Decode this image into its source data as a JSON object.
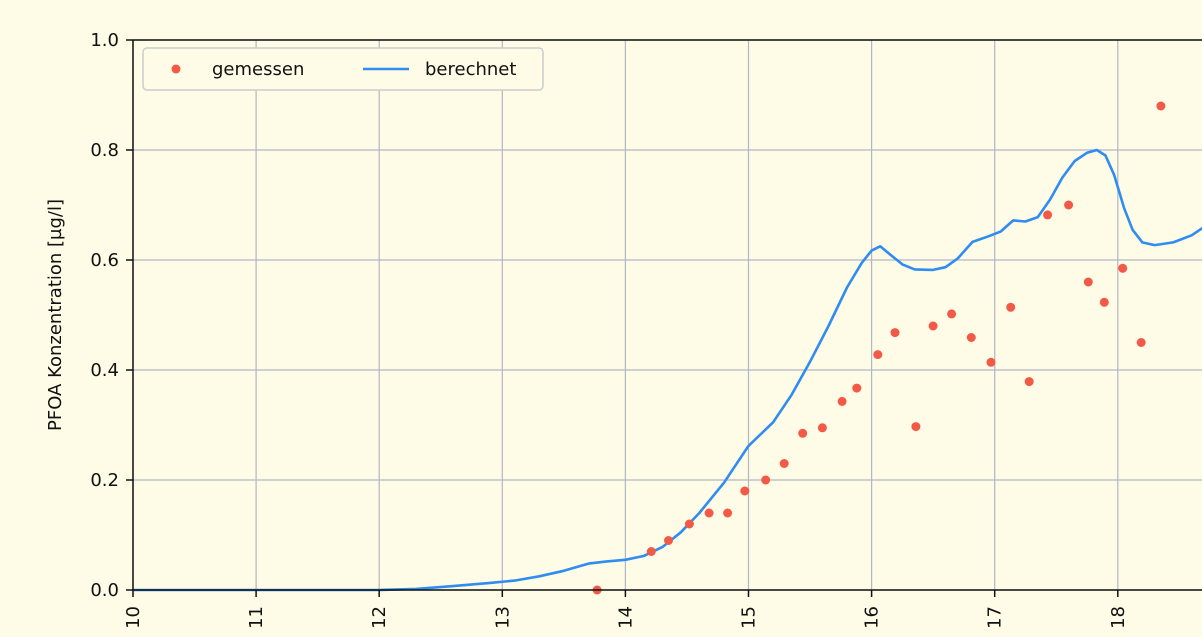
{
  "chart_data": {
    "type": "line",
    "ylabel": "PFOA Konzentration [µg/l]",
    "ylim": [
      0,
      1.0
    ],
    "xlim": [
      2010,
      2018.7
    ],
    "y_ticks": [
      "0.0",
      "0.2",
      "0.4",
      "0.6",
      "0.8",
      "1.0"
    ],
    "x_ticks": [
      "2010",
      "2011",
      "2012",
      "2013",
      "2014",
      "2015",
      "2016",
      "2017",
      "2018"
    ],
    "x_tick_labels_visible": [
      "10",
      "11",
      "12",
      "13",
      "14",
      "15",
      "16",
      "17",
      "18"
    ],
    "grid": true,
    "legend": {
      "placement": "top-left",
      "entries": [
        {
          "label": "gemessen",
          "kind": "marker",
          "color": "#f25a47"
        },
        {
          "label": "berechnet",
          "kind": "line",
          "color": "#2f8cf0"
        }
      ]
    },
    "series": [
      {
        "name": "gemessen",
        "kind": "scatter",
        "color": "#f25a47",
        "points": [
          [
            2013.77,
            0.0
          ],
          [
            2014.21,
            0.07
          ],
          [
            2014.35,
            0.09
          ],
          [
            2014.52,
            0.12
          ],
          [
            2014.68,
            0.14
          ],
          [
            2014.83,
            0.14
          ],
          [
            2014.97,
            0.18
          ],
          [
            2015.14,
            0.2
          ],
          [
            2015.29,
            0.23
          ],
          [
            2015.44,
            0.285
          ],
          [
            2015.6,
            0.295
          ],
          [
            2015.76,
            0.343
          ],
          [
            2015.88,
            0.367
          ],
          [
            2016.05,
            0.428
          ],
          [
            2016.19,
            0.468
          ],
          [
            2016.36,
            0.297
          ],
          [
            2016.5,
            0.48
          ],
          [
            2016.65,
            0.502
          ],
          [
            2016.81,
            0.459
          ],
          [
            2016.97,
            0.414
          ],
          [
            2017.13,
            0.514
          ],
          [
            2017.28,
            0.379
          ],
          [
            2017.43,
            0.682
          ],
          [
            2017.6,
            0.7
          ],
          [
            2017.76,
            0.56
          ],
          [
            2017.89,
            0.523
          ],
          [
            2018.04,
            0.585
          ],
          [
            2018.19,
            0.45
          ],
          [
            2018.35,
            0.88
          ]
        ]
      },
      {
        "name": "berechnet",
        "kind": "line",
        "color": "#2f8cf0",
        "points": [
          [
            2010.0,
            0.0
          ],
          [
            2011.0,
            0.0
          ],
          [
            2012.0,
            0.0
          ],
          [
            2012.3,
            0.002
          ],
          [
            2012.6,
            0.007
          ],
          [
            2012.9,
            0.013
          ],
          [
            2013.1,
            0.017
          ],
          [
            2013.3,
            0.025
          ],
          [
            2013.5,
            0.035
          ],
          [
            2013.7,
            0.048
          ],
          [
            2013.85,
            0.052
          ],
          [
            2014.0,
            0.055
          ],
          [
            2014.15,
            0.062
          ],
          [
            2014.3,
            0.078
          ],
          [
            2014.45,
            0.105
          ],
          [
            2014.6,
            0.14
          ],
          [
            2014.8,
            0.195
          ],
          [
            2015.0,
            0.262
          ],
          [
            2015.2,
            0.305
          ],
          [
            2015.35,
            0.355
          ],
          [
            2015.5,
            0.415
          ],
          [
            2015.65,
            0.48
          ],
          [
            2015.8,
            0.55
          ],
          [
            2015.92,
            0.595
          ],
          [
            2016.0,
            0.617
          ],
          [
            2016.07,
            0.625
          ],
          [
            2016.15,
            0.61
          ],
          [
            2016.25,
            0.592
          ],
          [
            2016.35,
            0.583
          ],
          [
            2016.5,
            0.582
          ],
          [
            2016.6,
            0.587
          ],
          [
            2016.7,
            0.603
          ],
          [
            2016.82,
            0.633
          ],
          [
            2016.95,
            0.643
          ],
          [
            2017.05,
            0.652
          ],
          [
            2017.15,
            0.672
          ],
          [
            2017.25,
            0.67
          ],
          [
            2017.35,
            0.678
          ],
          [
            2017.45,
            0.71
          ],
          [
            2017.55,
            0.75
          ],
          [
            2017.65,
            0.78
          ],
          [
            2017.75,
            0.795
          ],
          [
            2017.83,
            0.8
          ],
          [
            2017.9,
            0.79
          ],
          [
            2017.97,
            0.755
          ],
          [
            2018.05,
            0.695
          ],
          [
            2018.12,
            0.655
          ],
          [
            2018.2,
            0.632
          ],
          [
            2018.3,
            0.627
          ],
          [
            2018.45,
            0.632
          ],
          [
            2018.6,
            0.645
          ],
          [
            2018.7,
            0.66
          ]
        ]
      }
    ]
  }
}
